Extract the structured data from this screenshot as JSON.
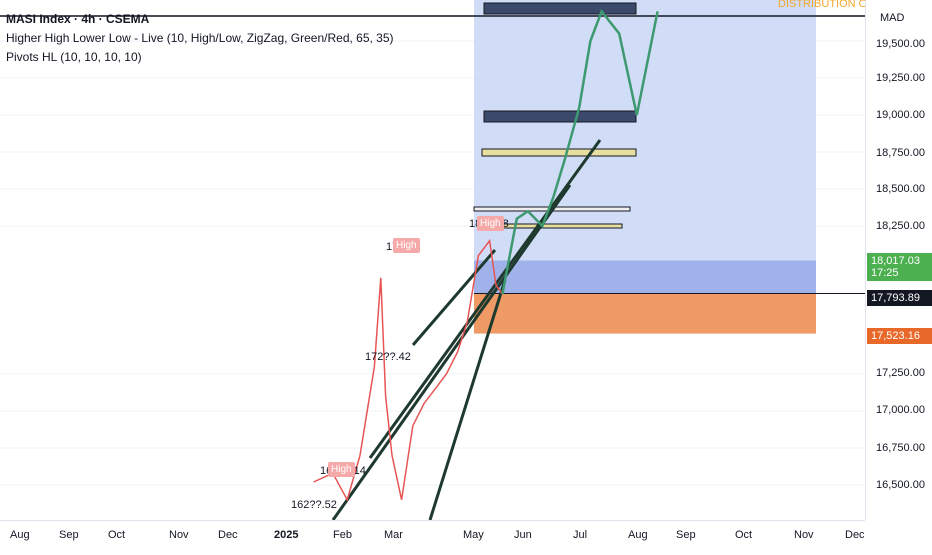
{
  "header": {
    "symbol_line": "MASI Index · 4h · CSEMA",
    "indicator_1": "Higher High Lower Low - Live (10, High/Low, ZigZag, Green/Red, 65, 35)",
    "indicator_2": "Pivots HL (10, 10, 10, 10)"
  },
  "corner_label": "DISTRIBUTION ON",
  "price_axis": {
    "currency": "MAD",
    "ticks": [
      "19,500.00",
      "19,250.00",
      "19,000.00",
      "18,750.00",
      "18,500.00",
      "18,250.00",
      "17,250.00",
      "17,000.00",
      "16,750.00",
      "16,500.00"
    ],
    "badges": [
      {
        "label": "18,017.03",
        "sub": "17:25",
        "color": "#4caf50"
      },
      {
        "label": "17,793.89",
        "color": "#131722"
      },
      {
        "label": "17,523.16",
        "color": "#e8682a"
      }
    ]
  },
  "time_axis": {
    "ticks": [
      "Aug",
      "Sep",
      "Oct",
      "Nov",
      "Dec",
      "2025",
      "Feb",
      "Mar",
      "May",
      "Jun",
      "Jul",
      "Aug",
      "Sep",
      "Oct",
      "Nov",
      "Dec"
    ]
  },
  "pivot_labels": [
    {
      "text": "17?:66",
      "tag": "High"
    },
    {
      "text": "18??:48",
      "tag": "High"
    },
    {
      "text": "172??.42"
    },
    {
      "text": "164??.14",
      "tag": "High"
    },
    {
      "text": "162??.52"
    }
  ],
  "chart_data": {
    "type": "line",
    "title": "MASI Index · 4h · CSEMA",
    "ylabel": "MAD",
    "ylim": [
      16350,
      19700
    ],
    "series": [
      {
        "name": "MASI Index",
        "x": [
          "2025-01-22",
          "2025-02-03",
          "2025-02-12",
          "2025-02-20",
          "2025-03-01",
          "2025-03-05",
          "2025-03-08",
          "2025-03-12",
          "2025-03-18",
          "2025-03-25",
          "2025-04-01",
          "2025-04-08",
          "2025-04-15",
          "2025-04-22",
          "2025-04-28",
          "2025-05-05",
          "2025-05-12",
          "2025-05-16",
          "2025-05-20"
        ],
        "values": [
          16520,
          16580,
          16400,
          16700,
          17300,
          17900,
          17100,
          16700,
          16400,
          16900,
          17050,
          17150,
          17250,
          17400,
          17600,
          18050,
          18150,
          17850,
          17790
        ]
      },
      {
        "name": "Projection",
        "x": [
          "2025-05-20",
          "2025-05-29",
          "2025-06-05",
          "2025-06-14",
          "2025-06-21",
          "2025-06-28",
          "2025-07-07",
          "2025-07-14",
          "2025-07-21",
          "2025-08-01",
          "2025-08-12",
          "2025-08-25"
        ],
        "values": [
          17790,
          18300,
          18350,
          18250,
          18450,
          18700,
          19050,
          19500,
          19700,
          19550,
          19000,
          19700
        ]
      }
    ],
    "levels": {
      "current_price": 18017.03,
      "last_price": 17793.89,
      "stop_level": 17523.16
    },
    "grid": true,
    "legend": "top-left"
  }
}
